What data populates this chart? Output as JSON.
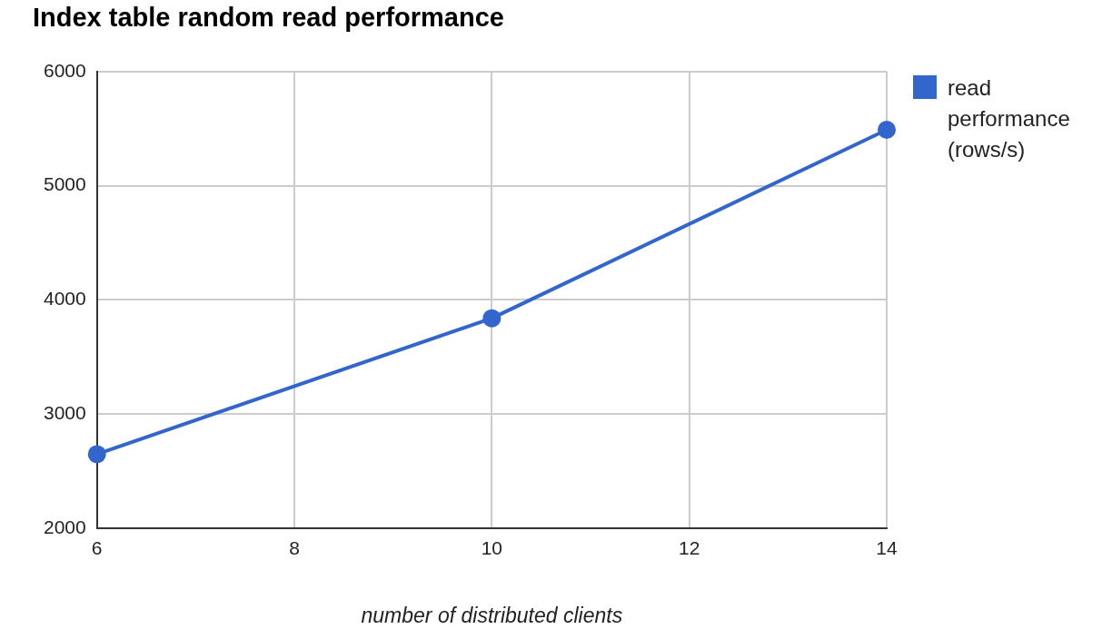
{
  "chart_data": {
    "type": "line",
    "title": "Index table random read performance",
    "xlabel": "number of distributed clients",
    "x": [
      6,
      10,
      14
    ],
    "series": [
      {
        "name": "read performance (rows/s)",
        "color": "#3366cc",
        "values": [
          2650,
          3840,
          5490
        ]
      }
    ],
    "xlim": [
      6,
      14
    ],
    "xticks": [
      6,
      8,
      10,
      12,
      14
    ],
    "ylim": [
      2000,
      6000
    ],
    "yticks": [
      2000,
      3000,
      4000,
      5000,
      6000
    ],
    "grid": true,
    "legend": "top right",
    "marker": "circle",
    "line_style": "solid"
  }
}
